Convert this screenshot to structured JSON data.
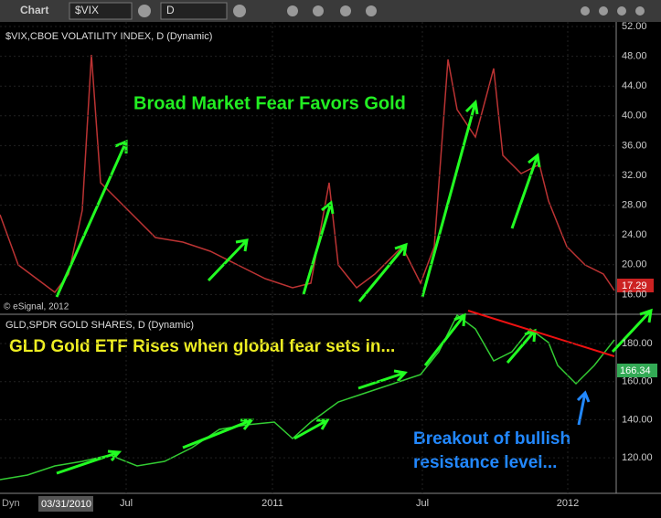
{
  "toolbar": {
    "title": "Chart",
    "symbol": "$VIX",
    "interval": "D"
  },
  "panels": [
    {
      "title": "$VIX,CBOE VOLATILITY INDEX, D (Dynamic)",
      "copyright": "© eSignal, 2012",
      "annotation": "Broad Market Fear Favors Gold",
      "last_price": "17.29",
      "axis_labels": [
        "52.00",
        "48.00",
        "44.00",
        "40.00",
        "36.00",
        "32.00",
        "28.00",
        "24.00",
        "20.00",
        "16.00"
      ]
    },
    {
      "title": "GLD,SPDR GOLD SHARES, D (Dynamic)",
      "annotation": "GLD Gold ETF Rises when global fear sets in...",
      "annotation2": [
        "Breakout of bullish",
        "resistance level..."
      ],
      "last_price": "166.34",
      "axis_labels": [
        "180.00",
        "160.00",
        "140.00",
        "120.00"
      ]
    }
  ],
  "x_axis": {
    "mode": "Dyn",
    "start": "03/31/2010",
    "labels": [
      "Jul",
      "2011",
      "Jul",
      "2012"
    ]
  }
}
